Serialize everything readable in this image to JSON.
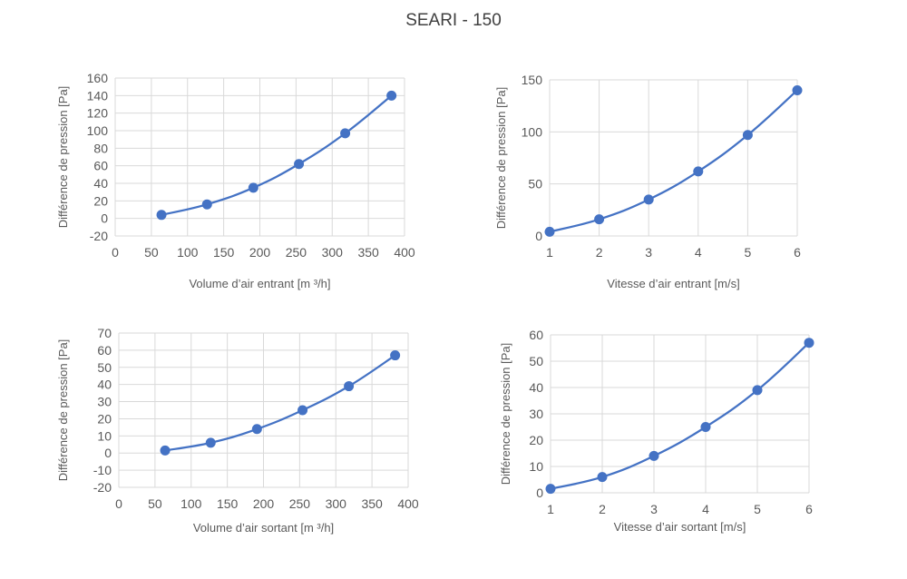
{
  "title": "SEARI - 150",
  "colors": {
    "series": "#4472c4",
    "grid": "#d9d9d9",
    "text": "#595959"
  },
  "chart_data": [
    {
      "type": "line",
      "xlabel": "Volume d’air entrant [m ³/h]",
      "ylabel": "Différence de pression [Pa]",
      "xlim": [
        0,
        400
      ],
      "xticks": [
        0,
        50,
        100,
        150,
        200,
        250,
        300,
        350,
        400
      ],
      "ylim": [
        -20,
        160
      ],
      "yticks": [
        -20,
        0,
        20,
        40,
        60,
        80,
        100,
        120,
        140,
        160
      ],
      "x": [
        64,
        127,
        191,
        254,
        318,
        382
      ],
      "y": [
        4,
        16,
        35,
        62,
        97,
        140
      ],
      "smooth": true,
      "grid": true
    },
    {
      "type": "line",
      "xlabel": "Vitesse d’air entrant [m/s]",
      "ylabel": "Différence de pression [Pa]",
      "xlim": [
        1,
        6
      ],
      "xticks": [
        1,
        2,
        3,
        4,
        5,
        6
      ],
      "ylim": [
        0,
        150
      ],
      "yticks": [
        0,
        50,
        100,
        150
      ],
      "x": [
        1,
        2,
        3,
        4,
        5,
        6
      ],
      "y": [
        4,
        16,
        35,
        62,
        97,
        140
      ],
      "smooth": true,
      "grid": true
    },
    {
      "type": "line",
      "xlabel": "Volume d’air sortant [m ³/h]",
      "ylabel": "Différence de pression [Pa]",
      "xlim": [
        0,
        400
      ],
      "xticks": [
        0,
        50,
        100,
        150,
        200,
        250,
        300,
        350,
        400
      ],
      "ylim": [
        -20,
        70
      ],
      "yticks": [
        -20,
        -10,
        0,
        10,
        20,
        30,
        40,
        50,
        60,
        70
      ],
      "x": [
        64,
        127,
        191,
        254,
        318,
        382
      ],
      "y": [
        1.5,
        6,
        14,
        25,
        39,
        57
      ],
      "smooth": true,
      "grid": true
    },
    {
      "type": "line",
      "xlabel": "Vitesse d’air sortant [m/s]",
      "ylabel": "Différence de pression [Pa]",
      "xlim": [
        1,
        6
      ],
      "xticks": [
        1,
        2,
        3,
        4,
        5,
        6
      ],
      "ylim": [
        0,
        60
      ],
      "yticks": [
        0,
        10,
        20,
        30,
        40,
        50,
        60
      ],
      "x": [
        1,
        2,
        3,
        4,
        5,
        6
      ],
      "y": [
        1.5,
        6,
        14,
        25,
        39,
        57
      ],
      "smooth": true,
      "grid": true
    }
  ]
}
